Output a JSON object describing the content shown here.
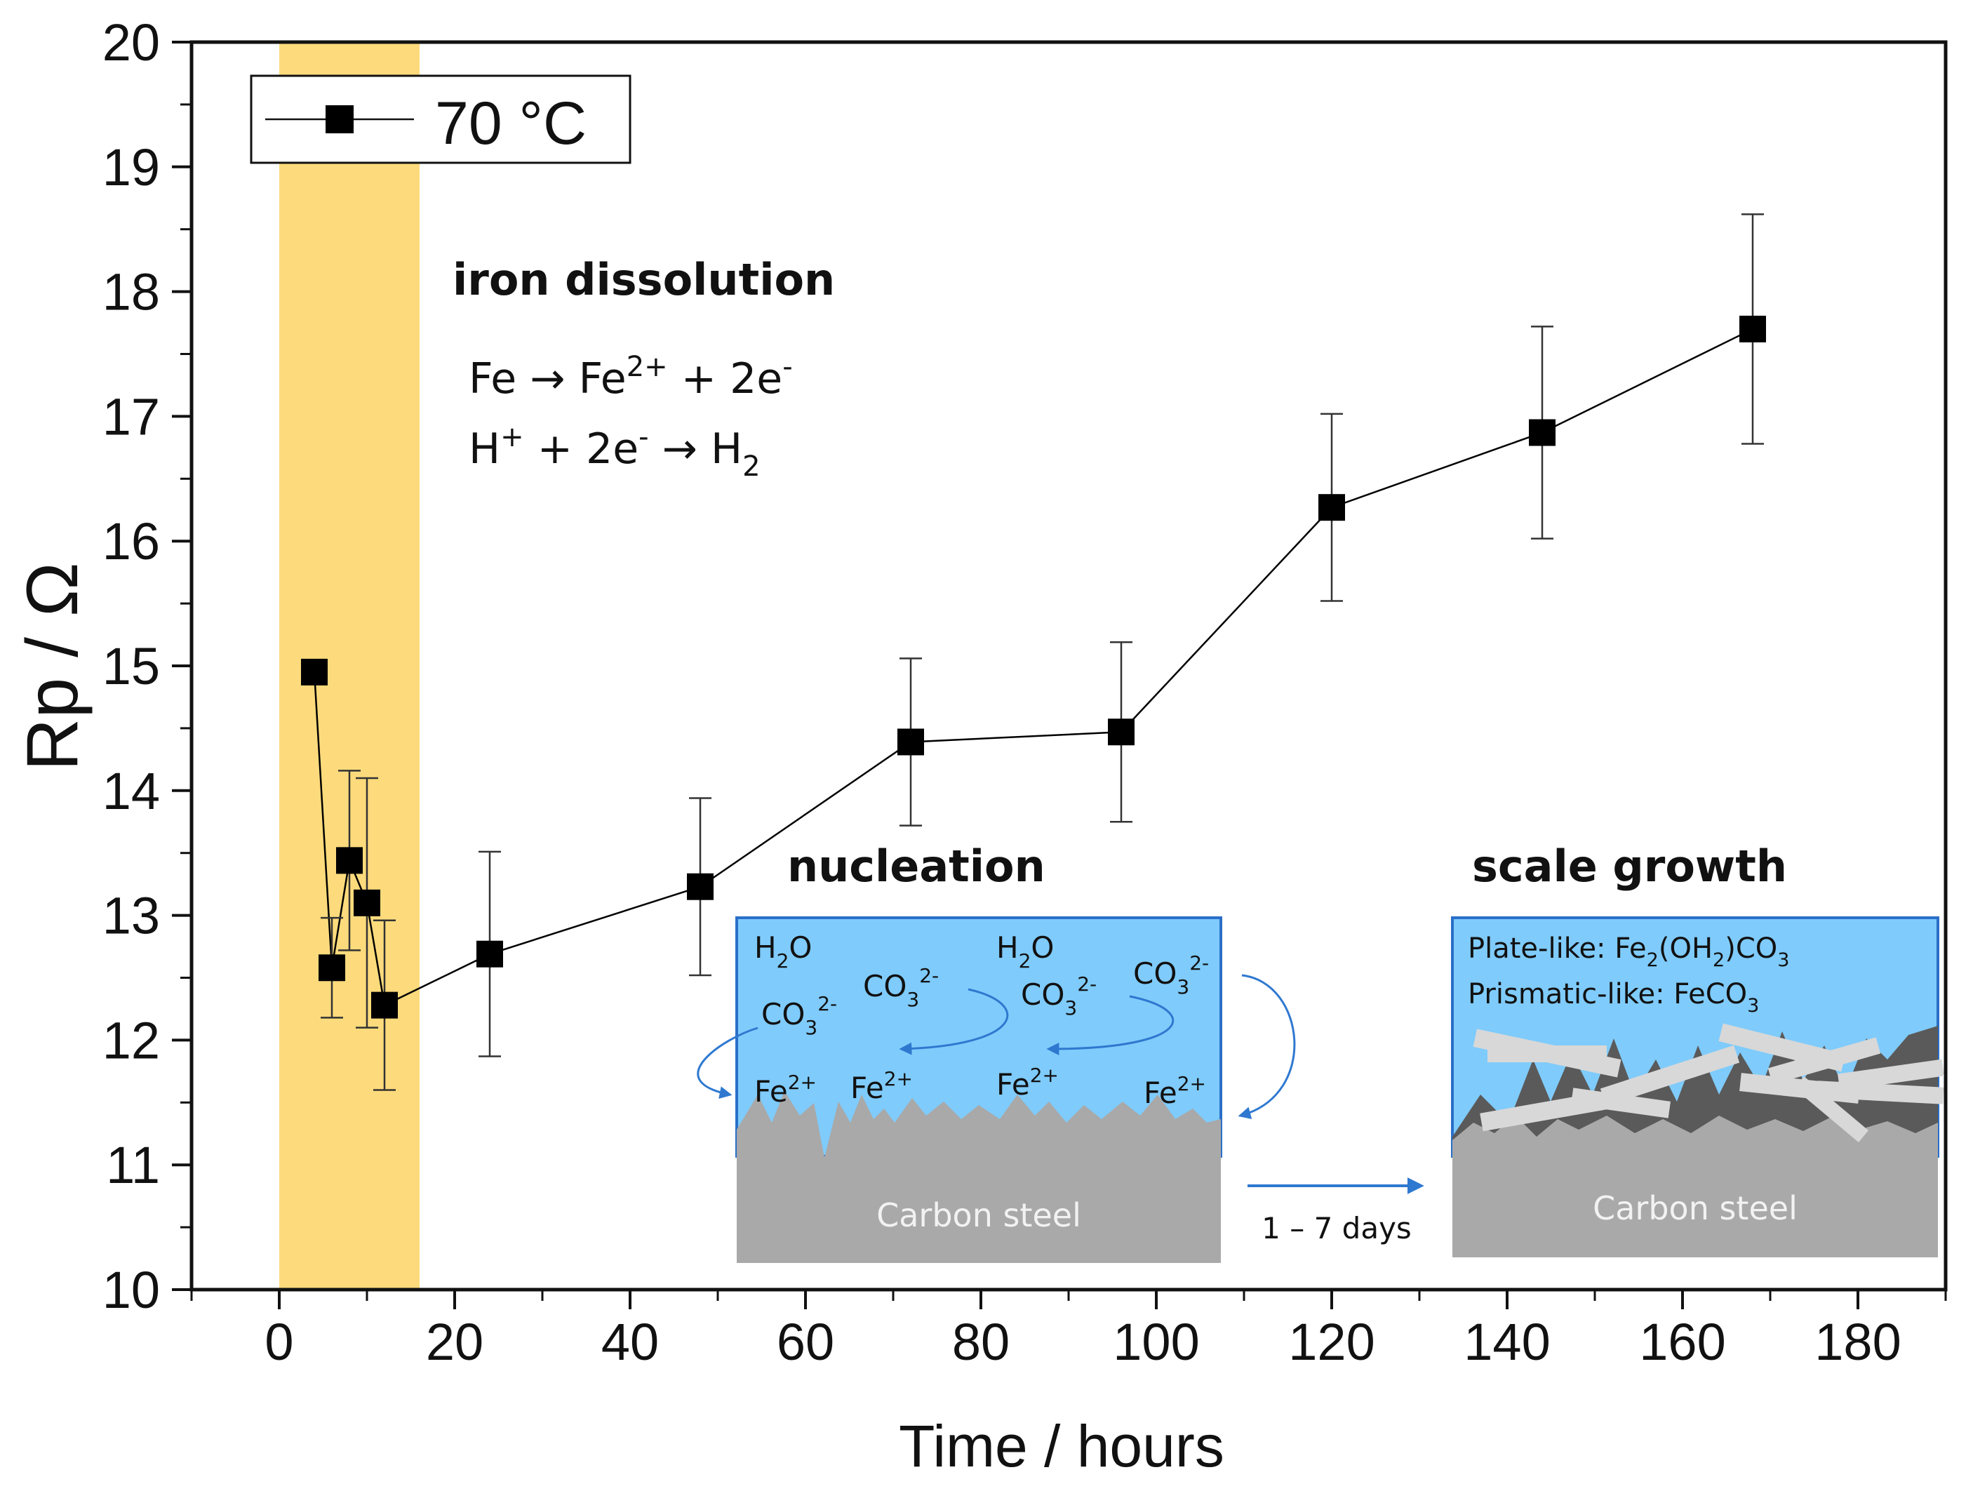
{
  "chart_data": {
    "type": "line",
    "title": "",
    "xlabel": "Time / hours",
    "ylabel": "Rp / Ω",
    "xlim": [
      -10,
      190
    ],
    "ylim": [
      10,
      20
    ],
    "x_ticks": [
      0,
      20,
      40,
      60,
      80,
      100,
      120,
      140,
      160,
      180
    ],
    "y_ticks": [
      10,
      11,
      12,
      13,
      14,
      15,
      16,
      17,
      18,
      19,
      20
    ],
    "grid": false,
    "legend": {
      "position": "top-left",
      "entries": [
        "70 °C"
      ]
    },
    "highlight_band": {
      "x_start": 0,
      "x_end": 16,
      "color": "#FDDB7C",
      "label": "iron dissolution"
    },
    "series": [
      {
        "name": "70 °C",
        "color": "#000000",
        "marker": "square",
        "x": [
          4,
          6,
          8,
          10,
          12,
          24,
          48,
          72,
          96,
          120,
          144,
          168
        ],
        "y": [
          14.95,
          12.58,
          13.44,
          13.1,
          12.28,
          12.69,
          13.23,
          14.39,
          14.47,
          16.27,
          16.87,
          17.7
        ],
        "error": [
          null,
          0.4,
          0.72,
          1.0,
          0.68,
          0.82,
          0.71,
          0.67,
          0.72,
          0.75,
          0.85,
          0.92
        ]
      }
    ],
    "annotations": {
      "iron_dissolution": {
        "title": "iron dissolution",
        "reaction1": {
          "a": "Fe ",
          "arrow": "→",
          "b": " Fe",
          "b_sup": "2+",
          "c": " + 2e",
          "c_sup": "-"
        },
        "reaction2": {
          "a": "H",
          "a_sup": "+",
          "b": " + 2e",
          "b_sup": "-",
          "arrow": " → ",
          "c": "H",
          "c_sub": "2"
        }
      },
      "nucleation": {
        "title": "nucleation",
        "h2o": "H",
        "h2o_sub": "2",
        "h2o_tail": "O",
        "co3": "CO",
        "co3_sub": "3",
        "co3_sup": "2-",
        "fe": "Fe",
        "fe_sup": "2+",
        "substrate": "Carbon steel"
      },
      "transition": "1 – 7 days",
      "scale_growth": {
        "title": "scale growth",
        "line1": {
          "label": "Plate-like: Fe",
          "sub1": "2",
          "mid": "(OH",
          "sub2": "2",
          "tail": ")CO",
          "sub3": "3"
        },
        "line2": {
          "label": "Prismatic-like: FeCO",
          "sub1": "3"
        },
        "substrate": "Carbon steel"
      }
    }
  },
  "colors": {
    "solution": "#7FCBFB",
    "solution_border": "#2A6FC8",
    "steel": "#A9A9A9",
    "dark_scale": "#5A5A5A",
    "crystal": "#D8D8D8",
    "arrow": "#2F78D0"
  }
}
